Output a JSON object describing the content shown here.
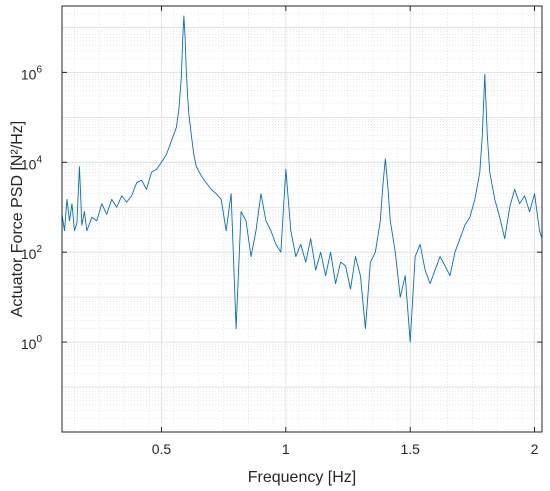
{
  "chart_data": {
    "type": "line",
    "title": "",
    "xlabel": "Frequency [Hz]",
    "ylabel": "Actuator Force PSD [N²/Hz]",
    "xscale": "linear",
    "yscale": "log",
    "xlim": [
      0.1,
      2.03
    ],
    "ylim": [
      0.01,
      30000000
    ],
    "grid": true,
    "minor_grid": true,
    "legend": "none",
    "x_ticks": [
      {
        "value": 0.5,
        "label": "0.5"
      },
      {
        "value": 1,
        "label": "1"
      },
      {
        "value": 1.5,
        "label": "1.5"
      },
      {
        "value": 2,
        "label": "2"
      }
    ],
    "y_ticks": [
      {
        "value": 1,
        "label": "10",
        "exp": "0"
      },
      {
        "value": 100,
        "label": "10",
        "exp": "2"
      },
      {
        "value": 10000,
        "label": "10",
        "exp": "4"
      },
      {
        "value": 1000000,
        "label": "10",
        "exp": "6"
      }
    ],
    "series": [
      {
        "color": "#0072BD",
        "x": [
          0.1,
          0.11,
          0.12,
          0.13,
          0.14,
          0.15,
          0.16,
          0.17,
          0.18,
          0.19,
          0.2,
          0.22,
          0.24,
          0.26,
          0.28,
          0.3,
          0.32,
          0.34,
          0.36,
          0.38,
          0.4,
          0.42,
          0.44,
          0.46,
          0.48,
          0.5,
          0.52,
          0.54,
          0.56,
          0.57,
          0.58,
          0.585,
          0.59,
          0.595,
          0.6,
          0.605,
          0.61,
          0.62,
          0.63,
          0.64,
          0.66,
          0.68,
          0.7,
          0.72,
          0.74,
          0.76,
          0.78,
          0.8,
          0.82,
          0.84,
          0.86,
          0.88,
          0.9,
          0.92,
          0.94,
          0.96,
          0.98,
          1.0,
          1.02,
          1.04,
          1.06,
          1.08,
          1.1,
          1.12,
          1.14,
          1.16,
          1.18,
          1.2,
          1.22,
          1.24,
          1.26,
          1.28,
          1.3,
          1.32,
          1.34,
          1.36,
          1.38,
          1.39,
          1.4,
          1.41,
          1.42,
          1.44,
          1.46,
          1.48,
          1.5,
          1.52,
          1.54,
          1.56,
          1.58,
          1.6,
          1.62,
          1.64,
          1.66,
          1.68,
          1.7,
          1.72,
          1.74,
          1.76,
          1.78,
          1.79,
          1.8,
          1.81,
          1.82,
          1.84,
          1.86,
          1.88,
          1.9,
          1.92,
          1.94,
          1.96,
          1.98,
          2.0,
          2.02,
          2.03
        ],
        "y": [
          700,
          300,
          1500,
          500,
          1200,
          300,
          450,
          8000,
          400,
          800,
          300,
          600,
          500,
          1200,
          700,
          1500,
          1000,
          1800,
          1300,
          1800,
          3500,
          4000,
          2500,
          6000,
          7000,
          10000,
          15000,
          30000,
          60000,
          150000,
          800000,
          5000000,
          18000000,
          6000000,
          1000000,
          300000,
          120000,
          40000,
          15000,
          8000,
          5000,
          3500,
          2500,
          2000,
          1500,
          300,
          2000,
          2,
          800,
          500,
          80,
          300,
          2000,
          500,
          300,
          150,
          100,
          7000,
          300,
          80,
          150,
          60,
          200,
          40,
          100,
          30,
          100,
          20,
          60,
          50,
          15,
          80,
          30,
          2,
          60,
          100,
          500,
          3000,
          12000,
          3000,
          500,
          100,
          10,
          30,
          1,
          80,
          150,
          40,
          20,
          40,
          80,
          50,
          30,
          100,
          200,
          400,
          600,
          1500,
          6000,
          40000,
          900000,
          40000,
          6000,
          1500,
          600,
          200,
          1000,
          2500,
          1200,
          1800,
          800,
          2000,
          300,
          200
        ]
      }
    ]
  }
}
